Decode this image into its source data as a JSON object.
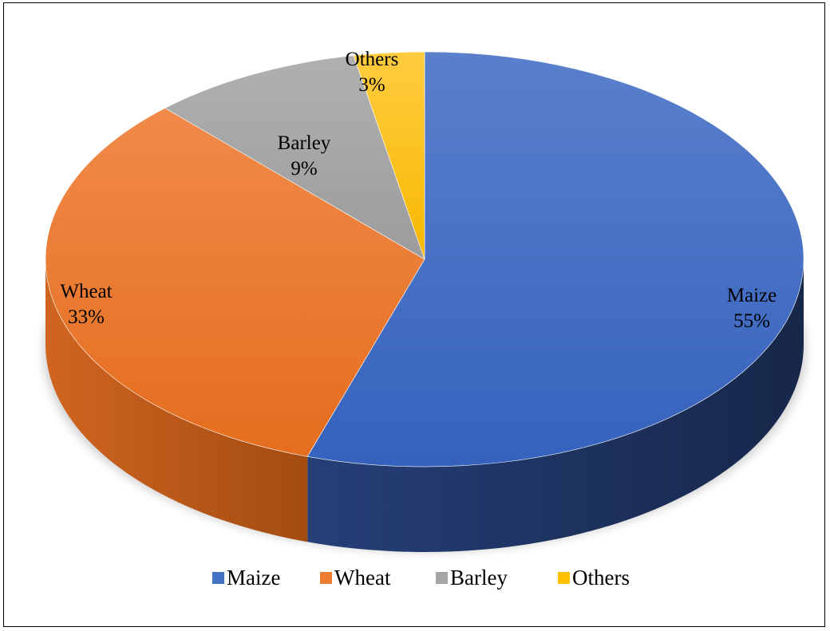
{
  "chart_data": {
    "type": "pie",
    "style": "3d",
    "title": "",
    "categories": [
      "Maize",
      "Wheat",
      "Barley",
      "Others"
    ],
    "values": [
      55,
      33,
      9,
      3
    ],
    "data_labels": [
      "55%",
      "33%",
      "9%",
      "3%"
    ],
    "legend": {
      "position": "bottom",
      "entries": [
        "Maize",
        "Wheat",
        "Barley",
        "Others"
      ]
    },
    "colors": [
      "#4472C4",
      "#ED7D31",
      "#A5A5A5",
      "#FFC000"
    ],
    "start_angle": "12 o'clock",
    "direction": "clockwise"
  }
}
